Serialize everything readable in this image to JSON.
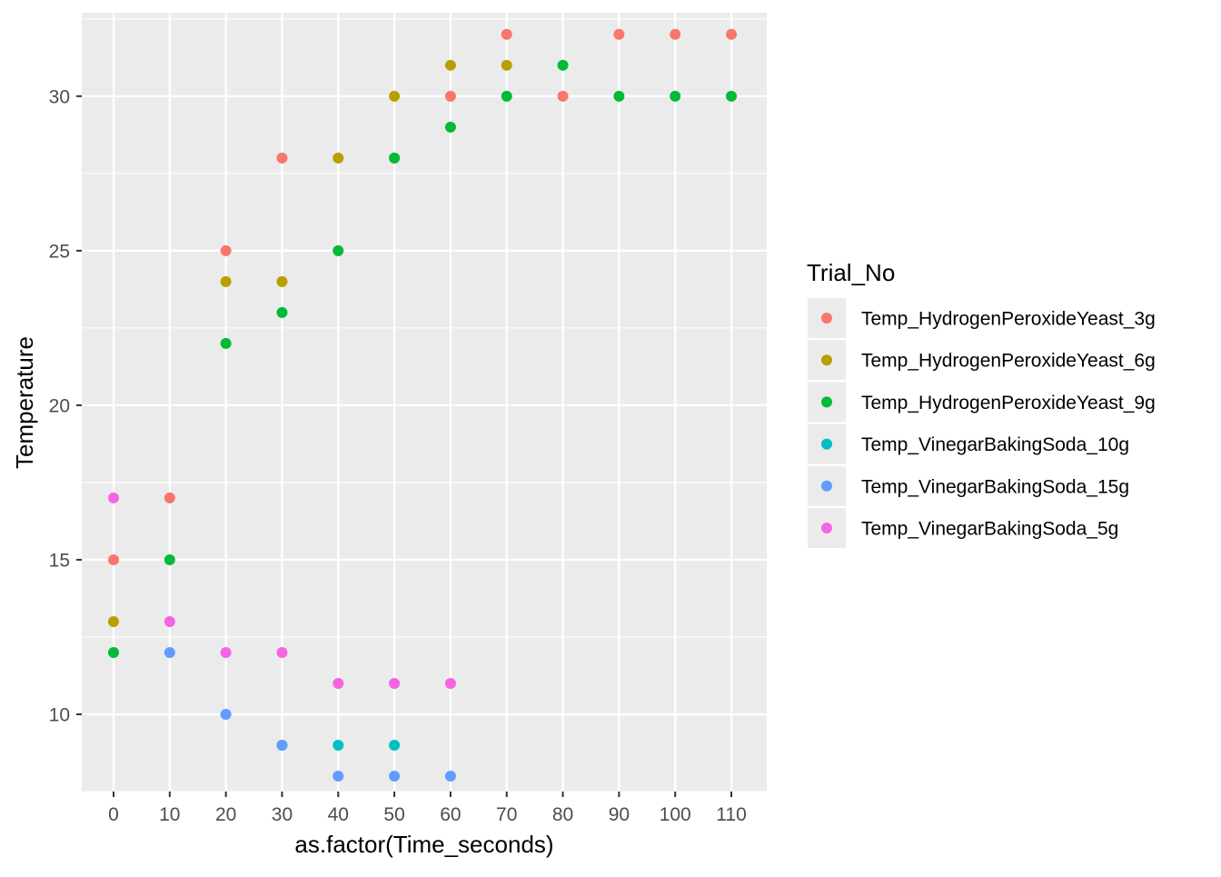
{
  "chart_data": {
    "type": "scatter",
    "title": "",
    "xlabel": "as.factor(Time_seconds)",
    "ylabel": "Temperature",
    "x_is_categorical": true,
    "categories": [
      "0",
      "10",
      "20",
      "30",
      "40",
      "50",
      "60",
      "70",
      "80",
      "90",
      "100",
      "110"
    ],
    "y_ticks": [
      10,
      15,
      20,
      25,
      30
    ],
    "ylim": [
      7.5,
      32.7
    ],
    "grid": true,
    "legend": {
      "title": "Trial_No",
      "position": "right"
    },
    "series": [
      {
        "name": "Temp_HydrogenPeroxideYeast_3g",
        "color": "#F8766D",
        "points": [
          [
            "0",
            15
          ],
          [
            "10",
            17
          ],
          [
            "20",
            25
          ],
          [
            "30",
            28
          ],
          [
            "50",
            28
          ],
          [
            "60",
            30
          ],
          [
            "70",
            32
          ],
          [
            "80",
            30
          ],
          [
            "90",
            32
          ],
          [
            "100",
            32
          ],
          [
            "110",
            32
          ]
        ]
      },
      {
        "name": "Temp_HydrogenPeroxideYeast_6g",
        "color": "#B79F00",
        "points": [
          [
            "0",
            13
          ],
          [
            "20",
            24
          ],
          [
            "30",
            24
          ],
          [
            "40",
            28
          ],
          [
            "50",
            30
          ],
          [
            "60",
            31
          ],
          [
            "70",
            31
          ]
        ]
      },
      {
        "name": "Temp_HydrogenPeroxideYeast_9g",
        "color": "#00BA38",
        "points": [
          [
            "0",
            12
          ],
          [
            "10",
            15
          ],
          [
            "20",
            22
          ],
          [
            "30",
            23
          ],
          [
            "40",
            25
          ],
          [
            "50",
            28
          ],
          [
            "60",
            29
          ],
          [
            "70",
            30
          ],
          [
            "80",
            31
          ],
          [
            "90",
            30
          ],
          [
            "100",
            30
          ],
          [
            "110",
            30
          ]
        ]
      },
      {
        "name": "Temp_VinegarBakingSoda_10g",
        "color": "#00BFC4",
        "points": [
          [
            "30",
            9
          ],
          [
            "40",
            9
          ],
          [
            "50",
            9
          ]
        ]
      },
      {
        "name": "Temp_VinegarBakingSoda_15g",
        "color": "#619CFF",
        "points": [
          [
            "10",
            12
          ],
          [
            "20",
            10
          ],
          [
            "30",
            9
          ],
          [
            "40",
            8
          ],
          [
            "50",
            8
          ],
          [
            "60",
            8
          ]
        ]
      },
      {
        "name": "Temp_VinegarBakingSoda_5g",
        "color": "#F564E3",
        "points": [
          [
            "0",
            17
          ],
          [
            "10",
            13
          ],
          [
            "20",
            12
          ],
          [
            "30",
            12
          ],
          [
            "40",
            11
          ],
          [
            "50",
            11
          ],
          [
            "60",
            11
          ]
        ]
      }
    ]
  }
}
